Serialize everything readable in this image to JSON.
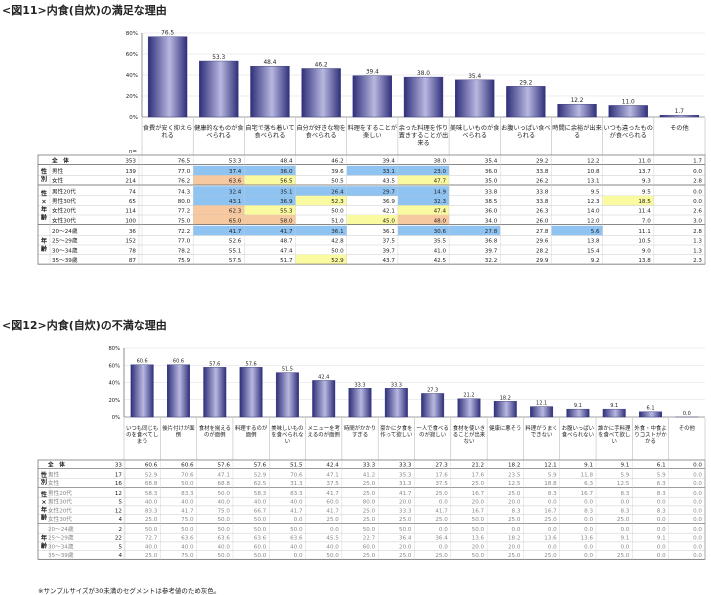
{
  "colors": {
    "bar_dark": "#2f2f7a",
    "bar_light": "#b8b8e0",
    "hi_blue": "#8fc3f2",
    "hi_yellow": "#fafaa0",
    "hi_orange": "#f7c9a0",
    "grey_text": "#888888"
  },
  "chart_data": [
    {
      "id": "fig11",
      "type": "bar",
      "title": "<図11>内食(自炊)の満足な理由",
      "ylim": [
        0,
        80
      ],
      "yticks": [
        "0%",
        "20%",
        "40%",
        "60%",
        "80%"
      ],
      "categories": [
        "食費が安く抑えられる",
        "健康的なものが食べられる",
        "自宅で落ち着いて食べられる",
        "自分が好きな物を食べられる",
        "料理をすることが楽しい",
        "余った料理を作り置きすることが出来る",
        "美味しいものが食べられる",
        "お腹いっぱい食べられる",
        "時間に余裕が出来る",
        "いつも違ったものが食べられる",
        "その他"
      ],
      "values": [
        76.5,
        53.3,
        48.4,
        46.2,
        39.4,
        38.0,
        35.4,
        29.2,
        12.2,
        11.0,
        1.7
      ],
      "table": {
        "n_header": "n=",
        "groups": [
          {
            "label": "",
            "rows": [
              {
                "label": "全　体",
                "n": "353",
                "cells": [
                  "76.5",
                  "53.3",
                  "48.4",
                  "46.2",
                  "39.4",
                  "38.0",
                  "35.4",
                  "29.2",
                  "12.2",
                  "11.0",
                  "1.7"
                ],
                "hl": [
                  "",
                  "",
                  "",
                  "",
                  "",
                  "",
                  "",
                  "",
                  "",
                  "",
                  ""
                ]
              }
            ]
          },
          {
            "label": "性別",
            "rows": [
              {
                "label": "男性",
                "n": "139",
                "cells": [
                  "77.0",
                  "37.4",
                  "36.0",
                  "39.6",
                  "33.1",
                  "23.0",
                  "36.0",
                  "33.8",
                  "10.8",
                  "13.7",
                  "0.0"
                ],
                "hl": [
                  "",
                  "b",
                  "b",
                  "",
                  "b",
                  "b",
                  "",
                  "",
                  "",
                  "",
                  ""
                ]
              },
              {
                "label": "女性",
                "n": "214",
                "cells": [
                  "76.2",
                  "63.6",
                  "56.5",
                  "50.5",
                  "43.5",
                  "47.7",
                  "35.0",
                  "26.2",
                  "13.1",
                  "9.3",
                  "2.8"
                ],
                "hl": [
                  "",
                  "o",
                  "y",
                  "",
                  "",
                  "y",
                  "",
                  "",
                  "",
                  "",
                  ""
                ]
              }
            ]
          },
          {
            "label": "性×年齢",
            "rows": [
              {
                "label": "男性20代",
                "n": "74",
                "cells": [
                  "74.3",
                  "32.4",
                  "35.1",
                  "26.4",
                  "29.7",
                  "14.9",
                  "33.8",
                  "33.8",
                  "9.5",
                  "9.5",
                  "0.0"
                ],
                "hl": [
                  "",
                  "b",
                  "b",
                  "b",
                  "b",
                  "b",
                  "",
                  "",
                  "",
                  "",
                  ""
                ]
              },
              {
                "label": "男性30代",
                "n": "65",
                "cells": [
                  "80.0",
                  "43.1",
                  "36.9",
                  "52.3",
                  "36.9",
                  "32.3",
                  "38.5",
                  "33.8",
                  "12.3",
                  "18.5",
                  "0.0"
                ],
                "hl": [
                  "",
                  "b",
                  "b",
                  "y",
                  "",
                  "b",
                  "",
                  "",
                  "",
                  "y",
                  ""
                ]
              },
              {
                "label": "女性20代",
                "n": "114",
                "cells": [
                  "77.2",
                  "62.3",
                  "55.3",
                  "50.0",
                  "42.1",
                  "47.4",
                  "36.0",
                  "26.3",
                  "14.0",
                  "11.4",
                  "2.6"
                ],
                "hl": [
                  "",
                  "o",
                  "y",
                  "",
                  "",
                  "y",
                  "",
                  "",
                  "",
                  "",
                  ""
                ]
              },
              {
                "label": "女性30代",
                "n": "100",
                "cells": [
                  "75.0",
                  "65.0",
                  "58.0",
                  "51.0",
                  "45.0",
                  "48.0",
                  "34.0",
                  "26.0",
                  "12.0",
                  "7.0",
                  "3.0"
                ],
                "hl": [
                  "",
                  "o",
                  "o",
                  "",
                  "y",
                  "o",
                  "",
                  "",
                  "",
                  "",
                  ""
                ]
              }
            ]
          },
          {
            "label": "年齢",
            "rows": [
              {
                "label": "20～24歳",
                "n": "36",
                "cells": [
                  "72.2",
                  "41.7",
                  "41.7",
                  "36.1",
                  "36.1",
                  "30.6",
                  "27.8",
                  "27.8",
                  "5.6",
                  "11.1",
                  "2.8"
                ],
                "hl": [
                  "",
                  "b",
                  "b",
                  "b",
                  "",
                  "b",
                  "b",
                  "",
                  "b",
                  "",
                  ""
                ]
              },
              {
                "label": "25～29歳",
                "n": "152",
                "cells": [
                  "77.0",
                  "52.6",
                  "48.7",
                  "42.8",
                  "37.5",
                  "35.5",
                  "36.8",
                  "29.6",
                  "13.8",
                  "10.5",
                  "1.3"
                ],
                "hl": [
                  "",
                  "",
                  "",
                  "",
                  "",
                  "",
                  "",
                  "",
                  "",
                  "",
                  ""
                ]
              },
              {
                "label": "30～34歳",
                "n": "78",
                "cells": [
                  "78.2",
                  "55.1",
                  "47.4",
                  "50.0",
                  "39.7",
                  "41.0",
                  "39.7",
                  "28.2",
                  "15.4",
                  "9.0",
                  "1.3"
                ],
                "hl": [
                  "",
                  "",
                  "",
                  "",
                  "",
                  "",
                  "",
                  "",
                  "",
                  "",
                  ""
                ]
              },
              {
                "label": "35～39歳",
                "n": "87",
                "cells": [
                  "75.9",
                  "57.5",
                  "51.7",
                  "52.9",
                  "43.7",
                  "42.5",
                  "32.2",
                  "29.9",
                  "9.2",
                  "13.8",
                  "2.3"
                ],
                "hl": [
                  "",
                  "",
                  "",
                  "y",
                  "",
                  "",
                  "",
                  "",
                  "",
                  "",
                  ""
                ]
              }
            ]
          }
        ]
      }
    },
    {
      "id": "fig12",
      "type": "bar",
      "title": "<図12>内食(自炊)の不満な理由",
      "ylim": [
        0,
        80
      ],
      "yticks": [
        "0%",
        "20%",
        "40%",
        "60%",
        "80%"
      ],
      "categories": [
        "いつも同じものを食べてしまう",
        "後片付けが面倒",
        "食材を揃えるのが面倒",
        "料理するのが面倒",
        "美味しいものを食べられない",
        "メニューを考えるのが面倒",
        "時間がかかりすぎる",
        "豪かに夕食を作って欲しい",
        "一人で食べるのが寂しい",
        "食材を使いきることが出来ない",
        "健康に悪そう",
        "料理がうまくできない",
        "お腹いっぱい食べられない",
        "誰かに手料理を食べて欲しい",
        "外食・中食よりコストがかかる",
        "その他"
      ],
      "values": [
        60.6,
        60.6,
        57.6,
        57.6,
        51.5,
        42.4,
        33.3,
        33.3,
        27.3,
        21.2,
        18.2,
        12.1,
        9.1,
        9.1,
        6.1,
        0.0
      ],
      "table": {
        "n_header": "",
        "groups": [
          {
            "label": "",
            "rows": [
              {
                "label": "全　体",
                "n": "33",
                "cells": [
                  "60.6",
                  "60.6",
                  "57.6",
                  "57.6",
                  "51.5",
                  "42.4",
                  "33.3",
                  "33.3",
                  "27.3",
                  "21.2",
                  "18.2",
                  "12.1",
                  "9.1",
                  "9.1",
                  "6.1",
                  "0.0"
                ]
              }
            ]
          },
          {
            "label": "性別",
            "rows": [
              {
                "label": "男性",
                "n": "17",
                "cells": [
                  "52.9",
                  "70.6",
                  "47.1",
                  "52.9",
                  "70.6",
                  "47.1",
                  "41.2",
                  "35.3",
                  "17.6",
                  "17.6",
                  "23.5",
                  "5.9",
                  "11.8",
                  "5.9",
                  "5.9",
                  "0.0"
                ]
              },
              {
                "label": "女性",
                "n": "16",
                "cells": [
                  "68.8",
                  "50.0",
                  "68.8",
                  "62.5",
                  "31.3",
                  "37.5",
                  "25.0",
                  "31.3",
                  "37.5",
                  "25.0",
                  "12.5",
                  "18.8",
                  "6.3",
                  "12.5",
                  "6.3",
                  "0.0"
                ]
              }
            ]
          },
          {
            "label": "性×年齢",
            "rows": [
              {
                "label": "男性20代",
                "n": "12",
                "cells": [
                  "58.3",
                  "83.3",
                  "50.0",
                  "58.3",
                  "83.3",
                  "41.7",
                  "25.0",
                  "41.7",
                  "25.0",
                  "16.7",
                  "25.0",
                  "8.3",
                  "16.7",
                  "8.3",
                  "8.3",
                  "0.0"
                ]
              },
              {
                "label": "男性30代",
                "n": "5",
                "cells": [
                  "40.0",
                  "40.0",
                  "40.0",
                  "40.0",
                  "40.0",
                  "60.0",
                  "80.0",
                  "20.0",
                  "0.0",
                  "20.0",
                  "20.0",
                  "0.0",
                  "0.0",
                  "0.0",
                  "0.0",
                  "0.0"
                ]
              },
              {
                "label": "女性20代",
                "n": "12",
                "cells": [
                  "83.3",
                  "41.7",
                  "75.0",
                  "66.7",
                  "41.7",
                  "41.7",
                  "25.0",
                  "33.3",
                  "41.7",
                  "16.7",
                  "8.3",
                  "16.7",
                  "8.3",
                  "8.3",
                  "8.3",
                  "0.0"
                ]
              },
              {
                "label": "女性30代",
                "n": "4",
                "cells": [
                  "25.0",
                  "75.0",
                  "50.0",
                  "50.0",
                  "0.0",
                  "25.0",
                  "25.0",
                  "25.0",
                  "25.0",
                  "50.0",
                  "25.0",
                  "25.0",
                  "0.0",
                  "25.0",
                  "0.0",
                  "0.0"
                ]
              }
            ]
          },
          {
            "label": "年齢",
            "rows": [
              {
                "label": "20～24歳",
                "n": "2",
                "cells": [
                  "50.0",
                  "50.0",
                  "50.0",
                  "50.0",
                  "50.0",
                  "0.0",
                  "50.0",
                  "50.0",
                  "0.0",
                  "50.0",
                  "0.0",
                  "0.0",
                  "0.0",
                  "0.0",
                  "0.0",
                  "0.0"
                ]
              },
              {
                "label": "25～29歳",
                "n": "22",
                "cells": [
                  "72.7",
                  "63.6",
                  "63.6",
                  "63.6",
                  "63.6",
                  "45.5",
                  "22.7",
                  "36.4",
                  "36.4",
                  "13.6",
                  "18.2",
                  "13.6",
                  "13.6",
                  "9.1",
                  "9.1",
                  "0.0"
                ]
              },
              {
                "label": "30～34歳",
                "n": "5",
                "cells": [
                  "40.0",
                  "40.0",
                  "40.0",
                  "60.0",
                  "40.0",
                  "40.0",
                  "60.0",
                  "20.0",
                  "0.0",
                  "20.0",
                  "20.0",
                  "0.0",
                  "0.0",
                  "0.0",
                  "0.0",
                  "0.0"
                ]
              },
              {
                "label": "35～39歳",
                "n": "4",
                "cells": [
                  "25.0",
                  "75.0",
                  "50.0",
                  "50.0",
                  "0.0",
                  "50.0",
                  "25.0",
                  "25.0",
                  "25.0",
                  "50.0",
                  "25.0",
                  "25.0",
                  "0.0",
                  "25.0",
                  "0.0",
                  "0.0"
                ]
              }
            ]
          }
        ]
      }
    }
  ],
  "footnote": "※サンプルサイズが30未満のセグメントは参考値のため灰色。"
}
